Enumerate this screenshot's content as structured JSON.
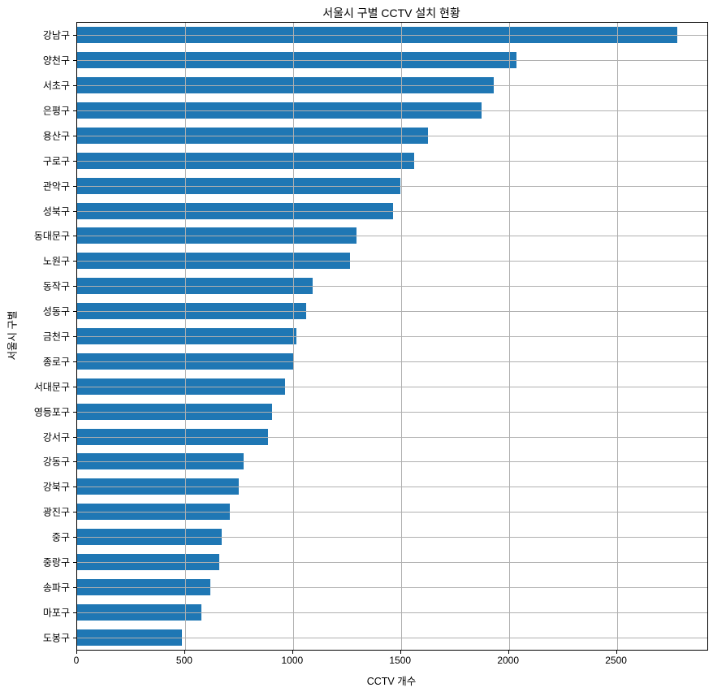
{
  "chart_data": {
    "type": "bar",
    "orientation": "horizontal",
    "title": "서울시 구별 CCTV 설치 현황",
    "xlabel": "CCTV 개수",
    "ylabel": "서울시 구별",
    "categories": [
      "강남구",
      "양천구",
      "서초구",
      "은평구",
      "용산구",
      "구로구",
      "관악구",
      "성북구",
      "동대문구",
      "노원구",
      "동작구",
      "성동구",
      "금천구",
      "종로구",
      "서대문구",
      "영등포구",
      "강서구",
      "강동구",
      "강북구",
      "광진구",
      "중구",
      "중랑구",
      "송파구",
      "마포구",
      "도봉구"
    ],
    "values": [
      2780,
      2034,
      1930,
      1873,
      1624,
      1561,
      1496,
      1464,
      1294,
      1265,
      1091,
      1062,
      1015,
      1002,
      962,
      904,
      884,
      773,
      748,
      707,
      671,
      660,
      618,
      574,
      485
    ],
    "xticks": [
      0,
      500,
      1000,
      1500,
      2000,
      2500
    ],
    "xlim": [
      0,
      2919
    ],
    "grid": true,
    "legend": false,
    "bar_color": "#1f77b4",
    "grid_color": "#b0b0b0",
    "spine_color": "#000000"
  }
}
